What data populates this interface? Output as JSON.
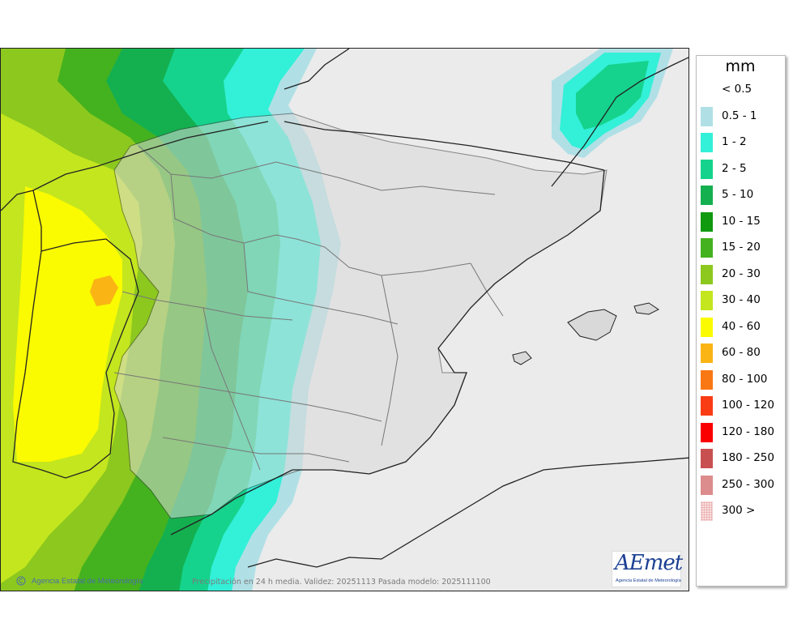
{
  "map": {
    "credit_text": "Agencia Estatal de Meteorología",
    "validity_text": "Precipitación en 24 h media. Validez: 20251113 Pasada modelo: 2025111100"
  },
  "logo": {
    "text": "AEmet",
    "subtitle": "Agencia Estatal de Meteorología"
  },
  "legend": {
    "title": "mm",
    "items": [
      {
        "label": "< 0.5",
        "color": "#ffffff"
      },
      {
        "label": "0.5 - 1",
        "color": "#b0e0e6"
      },
      {
        "label": "1 - 2",
        "color": "#33f0d8"
      },
      {
        "label": "2 - 5",
        "color": "#15d38c"
      },
      {
        "label": "5 - 10",
        "color": "#14b050"
      },
      {
        "label": "10 - 15",
        "color": "#0f9a0f"
      },
      {
        "label": "15 - 20",
        "color": "#44b21e"
      },
      {
        "label": "20 - 30",
        "color": "#8cc81e"
      },
      {
        "label": "30 - 40",
        "color": "#c3e61e"
      },
      {
        "label": "40 - 60",
        "color": "#fafa00"
      },
      {
        "label": "60 - 80",
        "color": "#fab414"
      },
      {
        "label": "80 - 100",
        "color": "#fa7814"
      },
      {
        "label": "100 - 120",
        "color": "#fa3c14"
      },
      {
        "label": "120 - 180",
        "color": "#fa0000"
      },
      {
        "label": "180 - 250",
        "color": "#c85050"
      },
      {
        "label": "250 - 300",
        "color": "#dc8c8c"
      },
      {
        "label": "300 >",
        "color": "#f0c8c8"
      }
    ]
  }
}
